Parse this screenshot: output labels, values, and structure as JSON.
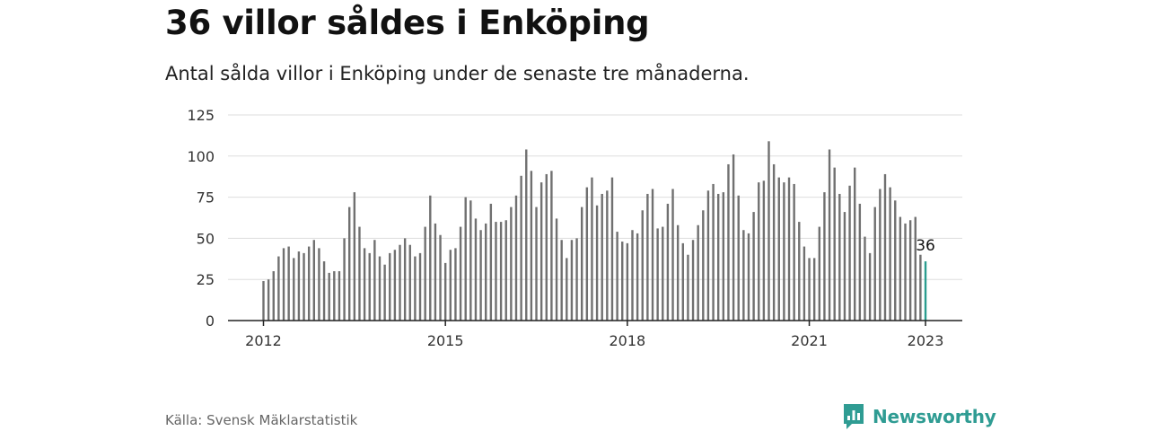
{
  "header": {
    "title": "36 villor såldes i Enköping",
    "subtitle": "Antal sålda villor i Enköping under de senaste tre månaderna."
  },
  "footer": {
    "source": "Källa: Svensk Mäklarstatistik",
    "brand": "Newsworthy"
  },
  "colors": {
    "bar": "#707070",
    "highlight": "#2a9d8f",
    "grid": "#dddddd",
    "axis": "#222222",
    "brand": "#2f9c93"
  },
  "chart_data": {
    "type": "bar",
    "x_ticks": [
      "2012",
      "2015",
      "2018",
      "2021",
      "2023"
    ],
    "y_ticks": [
      0,
      25,
      50,
      75,
      100,
      125
    ],
    "ylim": [
      0,
      125
    ],
    "grid": true,
    "highlight_label": "36",
    "series": [
      {
        "start": "2012-01",
        "values": [
          24,
          25,
          30,
          39,
          44,
          45,
          38,
          42,
          41,
          45,
          49,
          44,
          36,
          29,
          30,
          30,
          50,
          69,
          78,
          57,
          44,
          41,
          49,
          39,
          34,
          41,
          43,
          46,
          50,
          46,
          39,
          41,
          57,
          76,
          59,
          52,
          35,
          43,
          44,
          57,
          75,
          73,
          62,
          55,
          59,
          71,
          60,
          60,
          61,
          69,
          76,
          88,
          104,
          91,
          69,
          84,
          89,
          91,
          62,
          49,
          38,
          49,
          50,
          69,
          81,
          87,
          70,
          77,
          79,
          87,
          54,
          48,
          47,
          55,
          53,
          67,
          77,
          80,
          56,
          57,
          71,
          80,
          58,
          47,
          40,
          49,
          58,
          67,
          79,
          83,
          77,
          78,
          95,
          101,
          76,
          55,
          53,
          66,
          84,
          85,
          109,
          95,
          87,
          84,
          87,
          83,
          60,
          45,
          38,
          38,
          57,
          78,
          104,
          93,
          77,
          66,
          82,
          93,
          71,
          51,
          41,
          69,
          80,
          89,
          81,
          73,
          63,
          59,
          61,
          63,
          40,
          36
        ]
      }
    ]
  }
}
